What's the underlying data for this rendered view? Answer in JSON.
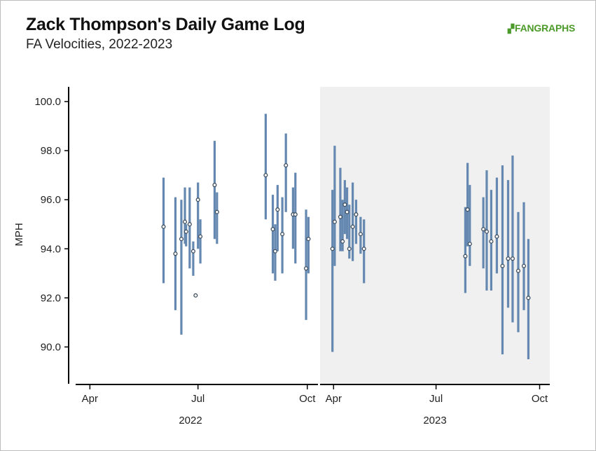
{
  "header": {
    "title": "Zack Thompson's Daily Game Log",
    "subtitle": "FA Velocities, 2022-2023",
    "logo": "FANGRAPHS"
  },
  "chart_data": {
    "type": "range-dot",
    "ylabel": "MPH",
    "ylim": [
      88.5,
      100.6
    ],
    "yticks": [
      "90.0",
      "92.0",
      "94.0",
      "96.0",
      "98.0",
      "100.0"
    ],
    "colors": {
      "range": "#6588b0",
      "dot": "#3f4f5f",
      "panel_2023_bg": "#f0f0f0",
      "axis": "#000000"
    },
    "panels": [
      {
        "name": "2022",
        "xlim": [
          "2022-03-20",
          "2022-10-10"
        ],
        "xticks": [
          "Apr",
          "Jul",
          "Oct"
        ],
        "xtick_dates": [
          "2022-04-01",
          "2022-07-01",
          "2022-10-01"
        ],
        "games": [
          {
            "date": "2022-06-02",
            "min": 92.6,
            "avg": 94.9,
            "max": 96.9
          },
          {
            "date": "2022-06-12",
            "min": 91.5,
            "avg": 93.8,
            "max": 96.1
          },
          {
            "date": "2022-06-17",
            "min": 90.5,
            "avg": 94.4,
            "max": 96.0
          },
          {
            "date": "2022-06-20",
            "min": 94.2,
            "avg": 95.1,
            "max": 96.5
          },
          {
            "date": "2022-06-21",
            "min": 94.1,
            "avg": 94.7,
            "max": 95.0
          },
          {
            "date": "2022-06-24",
            "min": 93.2,
            "avg": 95.0,
            "max": 96.5
          },
          {
            "date": "2022-06-27",
            "min": 92.9,
            "avg": 93.9,
            "max": 94.3
          },
          {
            "date": "2022-06-29",
            "min": 92.1,
            "avg": 92.1,
            "max": 92.1
          },
          {
            "date": "2022-07-01",
            "min": 94.0,
            "avg": 96.0,
            "max": 96.7
          },
          {
            "date": "2022-07-03",
            "min": 93.4,
            "avg": 94.5,
            "max": 95.2
          },
          {
            "date": "2022-07-15",
            "min": 94.4,
            "avg": 96.6,
            "max": 98.4
          },
          {
            "date": "2022-07-17",
            "min": 94.2,
            "avg": 95.5,
            "max": 96.3
          },
          {
            "date": "2022-08-27",
            "min": 95.2,
            "avg": 97.0,
            "max": 99.5
          },
          {
            "date": "2022-09-02",
            "min": 93.0,
            "avg": 94.8,
            "max": 96.2
          },
          {
            "date": "2022-09-04",
            "min": 92.7,
            "avg": 93.9,
            "max": 95.0
          },
          {
            "date": "2022-09-06",
            "min": 93.9,
            "avg": 95.6,
            "max": 96.6
          },
          {
            "date": "2022-09-10",
            "min": 93.0,
            "avg": 94.6,
            "max": 96.1
          },
          {
            "date": "2022-09-13",
            "min": 95.5,
            "avg": 97.4,
            "max": 98.7
          },
          {
            "date": "2022-09-19",
            "min": 94.0,
            "avg": 95.4,
            "max": 96.5
          },
          {
            "date": "2022-09-21",
            "min": 93.4,
            "avg": 95.4,
            "max": 97.1
          },
          {
            "date": "2022-09-30",
            "min": 91.1,
            "avg": 93.2,
            "max": 95.6
          },
          {
            "date": "2022-10-02",
            "min": 93.0,
            "avg": 94.4,
            "max": 95.3
          }
        ]
      },
      {
        "name": "2023",
        "xlim": [
          "2023-03-20",
          "2023-10-10"
        ],
        "xticks": [
          "Apr",
          "Jul",
          "Oct"
        ],
        "xtick_dates": [
          "2023-04-01",
          "2023-07-01",
          "2023-10-01"
        ],
        "games": [
          {
            "date": "2023-03-31",
            "min": 89.8,
            "avg": 94.0,
            "max": 96.4
          },
          {
            "date": "2023-04-02",
            "min": 93.3,
            "avg": 95.1,
            "max": 98.2
          },
          {
            "date": "2023-04-07",
            "min": 93.9,
            "avg": 95.3,
            "max": 97.3
          },
          {
            "date": "2023-04-09",
            "min": 93.9,
            "avg": 94.3,
            "max": 96.0
          },
          {
            "date": "2023-04-11",
            "min": 94.6,
            "avg": 95.8,
            "max": 96.8
          },
          {
            "date": "2023-04-13",
            "min": 94.4,
            "avg": 95.5,
            "max": 96.5
          },
          {
            "date": "2023-04-15",
            "min": 93.6,
            "avg": 94.0,
            "max": 95.8
          },
          {
            "date": "2023-04-18",
            "min": 93.5,
            "avg": 94.9,
            "max": 96.7
          },
          {
            "date": "2023-04-21",
            "min": 94.2,
            "avg": 95.4,
            "max": 96.0
          },
          {
            "date": "2023-04-25",
            "min": 93.8,
            "avg": 94.6,
            "max": 95.3
          },
          {
            "date": "2023-04-28",
            "min": 92.6,
            "avg": 94.0,
            "max": 95.2
          },
          {
            "date": "2023-07-27",
            "min": 92.2,
            "avg": 93.7,
            "max": 95.7
          },
          {
            "date": "2023-07-29",
            "min": 94.1,
            "avg": 95.6,
            "max": 97.5
          },
          {
            "date": "2023-07-31",
            "min": 93.3,
            "avg": 94.2,
            "max": 96.6
          },
          {
            "date": "2023-08-12",
            "min": 93.2,
            "avg": 94.8,
            "max": 96.1
          },
          {
            "date": "2023-08-15",
            "min": 92.3,
            "avg": 94.7,
            "max": 97.2
          },
          {
            "date": "2023-08-19",
            "min": 92.3,
            "avg": 94.3,
            "max": 96.4
          },
          {
            "date": "2023-08-24",
            "min": 93.0,
            "avg": 94.5,
            "max": 96.9
          },
          {
            "date": "2023-08-29",
            "min": 89.7,
            "avg": 93.3,
            "max": 97.4
          },
          {
            "date": "2023-09-03",
            "min": 91.6,
            "avg": 93.6,
            "max": 96.8
          },
          {
            "date": "2023-09-07",
            "min": 91.0,
            "avg": 93.6,
            "max": 97.8
          },
          {
            "date": "2023-09-12",
            "min": 90.6,
            "avg": 93.1,
            "max": 95.5
          },
          {
            "date": "2023-09-17",
            "min": 91.5,
            "avg": 93.3,
            "max": 95.9
          },
          {
            "date": "2023-09-21",
            "min": 89.5,
            "avg": 92.0,
            "max": 94.4
          }
        ]
      }
    ]
  }
}
